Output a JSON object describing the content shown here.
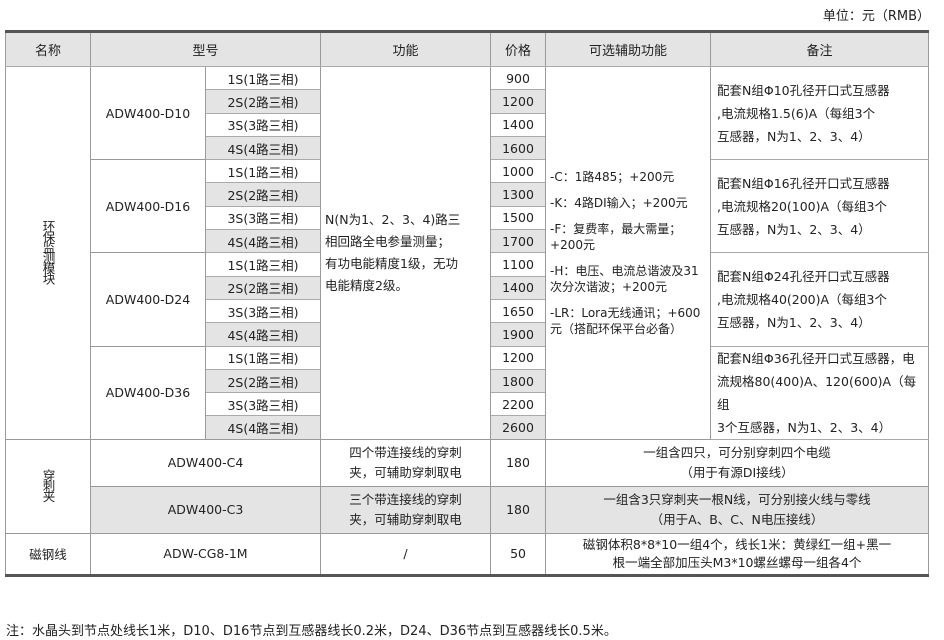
{
  "unit": "单位：元（RMB）",
  "headers": [
    "名称",
    "型号",
    "功能",
    "价格",
    "可选辅助功能",
    "备注"
  ],
  "env_module": {
    "name": "环保监测模块",
    "function": [
      "N(N为1、2、3、4)路三",
      "相回路全电参量测量；",
      "有功电能精度1级，无功",
      "电能精度2级。"
    ],
    "options": [
      "-C：1路485；+200元",
      "-K：4路DI输入；+200元",
      "-F：复费率，最大需量；+200元",
      "-H：电压、电流总谐波及31次分次谐波；+200元",
      "-LR：Lora无线通讯；+600元（搭配环保平台必备）"
    ],
    "variants": [
      "1S(1路三相)",
      "2S(2路三相)",
      "3S(3路三相)",
      "4S(4路三相)"
    ],
    "models": [
      {
        "model": "ADW400-D10",
        "prices": [
          "900",
          "1200",
          "1400",
          "1600"
        ],
        "remark": [
          "配套N组Φ10孔径开口式互感器",
          ",电流规格1.5(6)A（每组3个",
          "互感器，N为1、2、3、4）"
        ]
      },
      {
        "model": "ADW400-D16",
        "prices": [
          "1000",
          "1300",
          "1500",
          "1700"
        ],
        "remark": [
          "配套N组Φ16孔径开口式互感器",
          ",电流规格20(100)A（每组3个",
          "互感器，N为1、2、3、4）"
        ]
      },
      {
        "model": "ADW400-D24",
        "prices": [
          "1100",
          "1400",
          "1650",
          "1900"
        ],
        "remark": [
          "配套N组Φ24孔径开口式互感器",
          ",电流规格40(200)A（每组3个",
          "互感器，N为1、2、3、4）"
        ]
      },
      {
        "model": "ADW400-D36",
        "prices": [
          "1200",
          "1800",
          "2200",
          "2600"
        ],
        "remark": [
          "配套N组Φ36孔径开口式互感器，电",
          "流规格80(400)A、120(600)A（每组",
          "3个互感器，N为1、2、3、4）"
        ]
      }
    ]
  },
  "clamp": {
    "name": "穿刺夹",
    "rows": [
      {
        "model": "ADW400-C4",
        "function": [
          "四个带连接线的穿刺",
          "夹，可辅助穿刺取电"
        ],
        "price": "180",
        "remark": [
          "一组含四只，可分别穿刺四个电缆",
          "（用于有源DI接线）"
        ]
      },
      {
        "model": "ADW400-C3",
        "function": [
          "三个带连接线的穿刺",
          "夹，可辅助穿刺取电"
        ],
        "price": "180",
        "remark": [
          "一组含3只穿刺夹一根N线，可分别接火线与零线",
          "（用于A、B、C、N电压接线）"
        ]
      }
    ]
  },
  "magnet": {
    "name": "磁钢线",
    "model": "ADW-CG8-1M",
    "function": "/",
    "price": "50",
    "remark": [
      "磁钢体积8*8*10一组4个，线长1米：黄绿红一组+黑一",
      "根一端全部加压头M3*10螺丝螺母一组各4个"
    ]
  },
  "note": "注：水晶头到节点处线长1米，D10、D16节点到互感器线长0.2米，D24、D36节点到互感器线长0.5米。"
}
